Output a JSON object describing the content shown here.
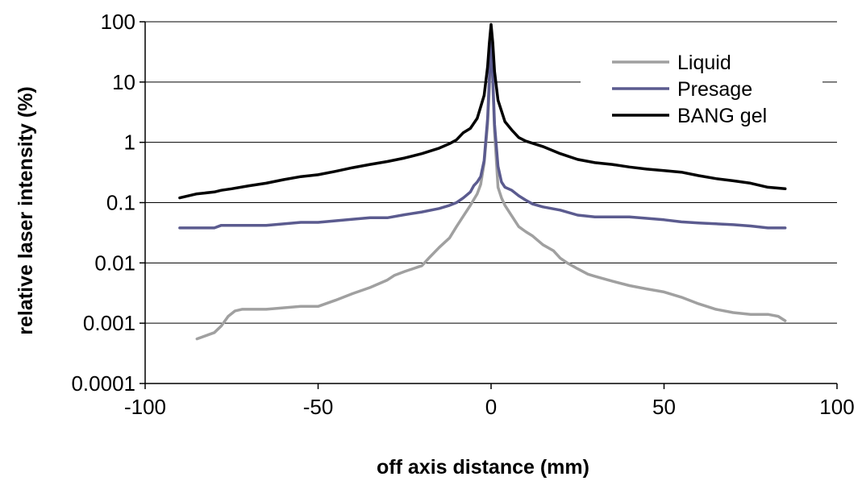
{
  "chart_data": {
    "type": "line",
    "title": "",
    "xlabel": "off axis distance (mm)",
    "ylabel": "relative laser intensity (%)",
    "xlim": [
      -100,
      100
    ],
    "ylim": [
      0.0001,
      100
    ],
    "yscale": "log",
    "grid": "horizontal major",
    "legend_position": "top-right",
    "x_ticks": [
      {
        "value": -100,
        "label": "-100"
      },
      {
        "value": -50,
        "label": "-50"
      },
      {
        "value": 0,
        "label": "0"
      },
      {
        "value": 50,
        "label": "50"
      },
      {
        "value": 100,
        "label": "100"
      }
    ],
    "y_ticks": [
      {
        "value": 100,
        "label": "100"
      },
      {
        "value": 10,
        "label": "10"
      },
      {
        "value": 1,
        "label": "1"
      },
      {
        "value": 0.1,
        "label": "0.1"
      },
      {
        "value": 0.01,
        "label": "0.01"
      },
      {
        "value": 0.001,
        "label": "0.001"
      },
      {
        "value": 0.0001,
        "label": "0.0001"
      }
    ],
    "series": [
      {
        "name": "Liquid",
        "color": "#a0a0a0",
        "x": [
          -85,
          -80,
          -78,
          -76,
          -74,
          -72,
          -65,
          -55,
          -50,
          -45,
          -40,
          -35,
          -30,
          -28,
          -25,
          -20,
          -18,
          -15,
          -12,
          -10,
          -8,
          -6,
          -4,
          -3,
          -2,
          -1,
          -0.5,
          0,
          0.5,
          1,
          2,
          3,
          4,
          6,
          8,
          10,
          12,
          15,
          18,
          20,
          22,
          25,
          28,
          30,
          35,
          40,
          45,
          50,
          55,
          60,
          65,
          70,
          75,
          80,
          83,
          85
        ],
        "y": [
          0.00055,
          0.0007,
          0.0009,
          0.0013,
          0.0016,
          0.0017,
          0.0017,
          0.0019,
          0.0019,
          0.0024,
          0.0031,
          0.0039,
          0.0052,
          0.0062,
          0.0072,
          0.009,
          0.012,
          0.018,
          0.026,
          0.04,
          0.06,
          0.09,
          0.14,
          0.2,
          0.45,
          2,
          8,
          80,
          10,
          1.5,
          0.18,
          0.12,
          0.09,
          0.06,
          0.04,
          0.033,
          0.028,
          0.02,
          0.016,
          0.012,
          0.01,
          0.008,
          0.0065,
          0.006,
          0.005,
          0.0042,
          0.0037,
          0.0033,
          0.0027,
          0.0021,
          0.0017,
          0.0015,
          0.0014,
          0.0014,
          0.0013,
          0.0011
        ]
      },
      {
        "name": "Presage",
        "color": "#5b5b8f",
        "x": [
          -90,
          -80,
          -78,
          -65,
          -55,
          -50,
          -40,
          -35,
          -30,
          -25,
          -20,
          -15,
          -12,
          -10,
          -8,
          -6,
          -5,
          -4,
          -3,
          -2,
          -1,
          -0.5,
          0,
          0.5,
          1,
          2,
          3,
          4,
          5,
          6,
          8,
          10,
          12,
          15,
          20,
          25,
          30,
          40,
          50,
          55,
          60,
          70,
          75,
          80,
          85
        ],
        "y": [
          0.038,
          0.038,
          0.042,
          0.042,
          0.047,
          0.047,
          0.053,
          0.056,
          0.056,
          0.063,
          0.07,
          0.08,
          0.09,
          0.1,
          0.12,
          0.15,
          0.19,
          0.22,
          0.27,
          0.5,
          2.5,
          12,
          45,
          12,
          2,
          0.4,
          0.22,
          0.18,
          0.17,
          0.16,
          0.13,
          0.11,
          0.095,
          0.085,
          0.075,
          0.062,
          0.058,
          0.058,
          0.052,
          0.048,
          0.046,
          0.043,
          0.041,
          0.038,
          0.038
        ]
      },
      {
        "name": "BANG gel",
        "color": "#000000",
        "x": [
          -90,
          -85,
          -80,
          -78,
          -75,
          -70,
          -65,
          -60,
          -55,
          -50,
          -45,
          -40,
          -35,
          -30,
          -25,
          -20,
          -15,
          -12,
          -10,
          -8,
          -6,
          -4,
          -2,
          -1,
          -0.5,
          0,
          0.5,
          1,
          2,
          4,
          6,
          8,
          10,
          15,
          20,
          25,
          30,
          35,
          40,
          45,
          50,
          55,
          60,
          65,
          70,
          75,
          80,
          85
        ],
        "y": [
          0.12,
          0.14,
          0.15,
          0.16,
          0.17,
          0.19,
          0.21,
          0.24,
          0.27,
          0.29,
          0.33,
          0.38,
          0.43,
          0.48,
          0.55,
          0.65,
          0.8,
          0.95,
          1.1,
          1.45,
          1.7,
          2.5,
          6,
          18,
          45,
          90,
          45,
          15,
          5,
          2.2,
          1.6,
          1.2,
          1.05,
          0.85,
          0.65,
          0.52,
          0.46,
          0.43,
          0.39,
          0.36,
          0.34,
          0.32,
          0.28,
          0.25,
          0.23,
          0.21,
          0.18,
          0.17
        ]
      }
    ]
  }
}
